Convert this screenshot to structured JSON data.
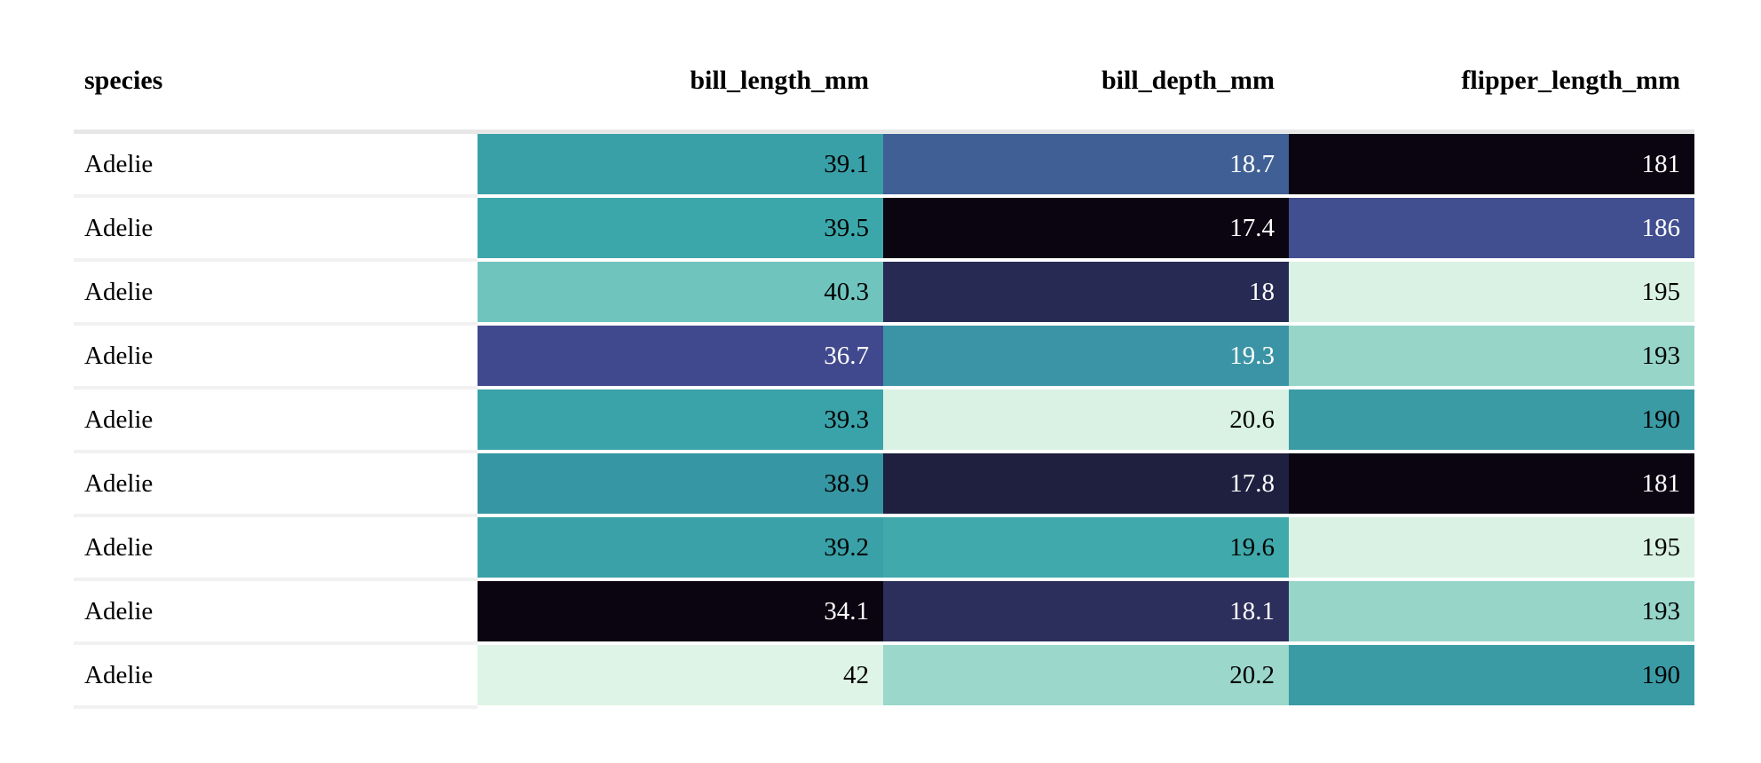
{
  "chart_data": {
    "type": "table",
    "style": "heatmap gradient table (mako-like colormap, per-column normalization, dark=low / pale mint=high)",
    "columns": [
      "species",
      "bill_length_mm",
      "bill_depth_mm",
      "flipper_length_mm"
    ],
    "rows": [
      [
        "Adelie",
        39.1,
        18.7,
        181
      ],
      [
        "Adelie",
        39.5,
        17.4,
        186
      ],
      [
        "Adelie",
        40.3,
        18,
        195
      ],
      [
        "Adelie",
        36.7,
        19.3,
        193
      ],
      [
        "Adelie",
        39.3,
        20.6,
        190
      ],
      [
        "Adelie",
        38.9,
        17.8,
        181
      ],
      [
        "Adelie",
        39.2,
        19.6,
        195
      ],
      [
        "Adelie",
        34.1,
        18.1,
        193
      ],
      [
        "Adelie",
        42,
        20.2,
        190
      ]
    ]
  },
  "table": {
    "header": {
      "species": "species",
      "bill_length_mm": "bill_length_mm",
      "bill_depth_mm": "bill_depth_mm",
      "flipper_length_mm": "flipper_length_mm"
    },
    "header_border_color": "#e7e7e7",
    "row_separator_color": "#f1f1f1",
    "rows": [
      {
        "species": "Adelie",
        "values": [
          {
            "text": "39.1",
            "bg": "#3AA0A8",
            "fg": "#000000"
          },
          {
            "text": "18.7",
            "bg": "#3F5F95",
            "fg": "#FFFFFF"
          },
          {
            "text": "181",
            "bg": "#0B0511",
            "fg": "#FFFFFF"
          }
        ]
      },
      {
        "species": "Adelie",
        "values": [
          {
            "text": "39.5",
            "bg": "#3CA7AA",
            "fg": "#000000"
          },
          {
            "text": "17.4",
            "bg": "#0B0511",
            "fg": "#FFFFFF"
          },
          {
            "text": "186",
            "bg": "#414E90",
            "fg": "#FFFFFF"
          }
        ]
      },
      {
        "species": "Adelie",
        "values": [
          {
            "text": "40.3",
            "bg": "#6FC4BE",
            "fg": "#000000"
          },
          {
            "text": "18",
            "bg": "#272A53",
            "fg": "#FFFFFF"
          },
          {
            "text": "195",
            "bg": "#DAF2E4",
            "fg": "#000000"
          }
        ]
      },
      {
        "species": "Adelie",
        "values": [
          {
            "text": "36.7",
            "bg": "#41498E",
            "fg": "#FFFFFF"
          },
          {
            "text": "19.3",
            "bg": "#3A94A5",
            "fg": "#FFFFFF"
          },
          {
            "text": "193",
            "bg": "#97D5C9",
            "fg": "#000000"
          }
        ]
      },
      {
        "species": "Adelie",
        "values": [
          {
            "text": "39.3",
            "bg": "#3AA3A9",
            "fg": "#000000"
          },
          {
            "text": "20.6",
            "bg": "#D9F2E3",
            "fg": "#000000"
          },
          {
            "text": "190",
            "bg": "#3A9BA5",
            "fg": "#000000"
          }
        ]
      },
      {
        "species": "Adelie",
        "values": [
          {
            "text": "38.9",
            "bg": "#3796A3",
            "fg": "#000000"
          },
          {
            "text": "17.8",
            "bg": "#1F2040",
            "fg": "#FFFFFF"
          },
          {
            "text": "181",
            "bg": "#0B0511",
            "fg": "#FFFFFF"
          }
        ]
      },
      {
        "species": "Adelie",
        "values": [
          {
            "text": "39.2",
            "bg": "#3AA1A8",
            "fg": "#000000"
          },
          {
            "text": "19.6",
            "bg": "#40A9AB",
            "fg": "#000000"
          },
          {
            "text": "195",
            "bg": "#DAF2E4",
            "fg": "#000000"
          }
        ]
      },
      {
        "species": "Adelie",
        "values": [
          {
            "text": "34.1",
            "bg": "#0B0511",
            "fg": "#FFFFFF"
          },
          {
            "text": "18.1",
            "bg": "#2C2E5C",
            "fg": "#FFFFFF"
          },
          {
            "text": "193",
            "bg": "#97D5C9",
            "fg": "#000000"
          }
        ]
      },
      {
        "species": "Adelie",
        "values": [
          {
            "text": "42",
            "bg": "#DEF4E6",
            "fg": "#000000"
          },
          {
            "text": "20.2",
            "bg": "#9BD7CB",
            "fg": "#000000"
          },
          {
            "text": "190",
            "bg": "#3A9BA5",
            "fg": "#000000"
          }
        ]
      }
    ]
  }
}
